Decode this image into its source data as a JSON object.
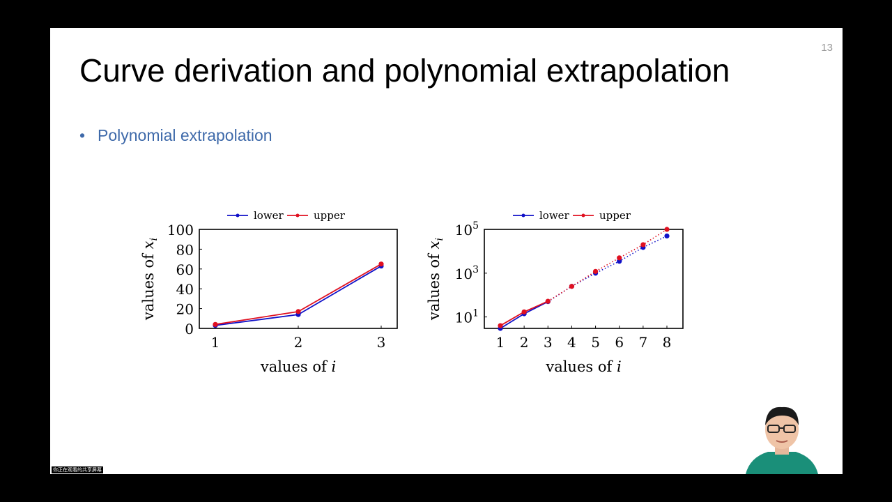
{
  "slide": {
    "title": "Curve derivation and polynomial extrapolation",
    "page_number": "13",
    "bullet": "Polynomial extrapolation",
    "bullet_color": "#3f6aaa"
  },
  "share_label": "你正在观看的共享屏幕",
  "colors": {
    "lower": "#1010c8",
    "upper": "#e01020"
  },
  "chart_data": [
    {
      "type": "line",
      "legend": [
        "lower",
        "upper"
      ],
      "legend_position": "top",
      "xlabel": "values of i",
      "ylabel": "values of x_i",
      "x": [
        1,
        2,
        3
      ],
      "xticks": [
        "1",
        "2",
        "3"
      ],
      "yticks": [
        "0",
        "20",
        "40",
        "60",
        "80",
        "100"
      ],
      "ylim": [
        0,
        100
      ],
      "yscale": "linear",
      "series": [
        {
          "name": "lower",
          "values": [
            3,
            14,
            63
          ]
        },
        {
          "name": "upper",
          "values": [
            4,
            17,
            65
          ]
        }
      ]
    },
    {
      "type": "line",
      "legend": [
        "lower",
        "upper"
      ],
      "legend_position": "top",
      "xlabel": "values of i",
      "ylabel": "values of x_i",
      "x": [
        1,
        2,
        3,
        4,
        5,
        6,
        7,
        8
      ],
      "xticks": [
        "1",
        "2",
        "3",
        "4",
        "5",
        "6",
        "7",
        "8"
      ],
      "yticks": [
        "10^1",
        "10^3",
        "10^5"
      ],
      "ylim": [
        3,
        100000
      ],
      "yscale": "log",
      "fitted_from_x": 3,
      "series": [
        {
          "name": "lower",
          "values": [
            3,
            14,
            50,
            250,
            1000,
            3500,
            15000,
            50000
          ]
        },
        {
          "name": "upper",
          "values": [
            4,
            17,
            52,
            250,
            1200,
            5000,
            20000,
            100000
          ]
        }
      ]
    }
  ]
}
